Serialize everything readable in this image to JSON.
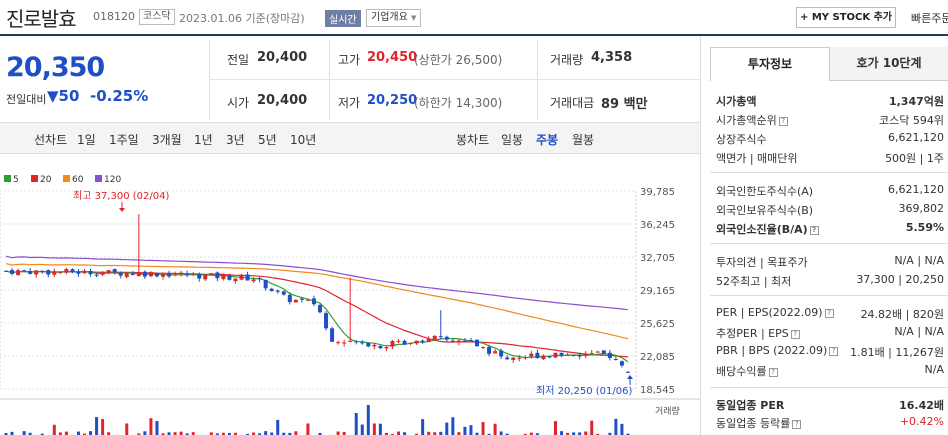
{
  "header": {
    "name": "진로발효",
    "code": "018120",
    "market": "코스닥",
    "date": "2023.01.06 기준(장마감)",
    "live_label": "실시간",
    "company_info_label": "기업개요",
    "mystock_label": "+ MY STOCK 추가",
    "quick_label": "빠른주문"
  },
  "price": {
    "current": "20,350",
    "vs_prev_label": "전일대비",
    "change": "▼50",
    "rate": "-0.25%"
  },
  "stats": {
    "prev_close_label": "전일",
    "prev_close": "20,400",
    "high_label": "고가",
    "high": "20,450",
    "upper_limit": "(상한가 26,500)",
    "volume_label": "거래량",
    "volume": "4,358",
    "open_label": "시가",
    "open": "20,400",
    "low_label": "저가",
    "low": "20,250",
    "lower_limit": "(하한가 14,300)",
    "amount_label": "거래대금",
    "amount": "89 백만"
  },
  "periods": {
    "line_label": "선차트",
    "line_items": [
      "1일",
      "1주일",
      "3개월",
      "1년",
      "3년",
      "5년",
      "10년"
    ],
    "candle_label": "봉차트",
    "candle_items": [
      "일봉",
      "주봉",
      "월봉"
    ],
    "selected": "주봉"
  },
  "right_panel": {
    "tabs": [
      "투자정보",
      "호가 10단계"
    ],
    "rows": [
      {
        "label": "시가총액",
        "value": "1,347억원"
      },
      {
        "label": "시가총액순위",
        "value": "코스닥 594위"
      },
      {
        "label": "상장주식수",
        "value": "6,621,120"
      },
      {
        "label": "액면가 | 매매단위",
        "value": "500원 | 1주"
      },
      {
        "label": "외국인한도주식수(A)",
        "value": "6,621,120"
      },
      {
        "label": "외국인보유주식수(B)",
        "value": "369,802"
      },
      {
        "label": "외국인소진율(B/A)",
        "value": "5.59%"
      },
      {
        "label": "투자의견 | 목표주가",
        "value": "N/A | N/A"
      },
      {
        "label": "52주최고 | 최저",
        "value": "37,300 | 20,250"
      },
      {
        "label": "PER | EPS(2022.09)",
        "value": "24.82배 | 820원"
      },
      {
        "label": "추정PER | EPS",
        "value": "N/A | N/A"
      },
      {
        "label": "PBR | BPS (2022.09)",
        "value": "1.81배 | 11,267원"
      },
      {
        "label": "배당수익률",
        "value": "N/A"
      },
      {
        "label": "동일업종 PER",
        "value": "16.42배"
      },
      {
        "label": "동일업종 등락률",
        "value": "+0.42%"
      }
    ]
  },
  "chart_data": {
    "type": "candlestick",
    "legend": [
      {
        "name": "5",
        "color": "#2ca02c"
      },
      {
        "name": "20",
        "color": "#e0242d"
      },
      {
        "name": "60",
        "color": "#f08a1c"
      },
      {
        "name": "120",
        "color": "#8a4fcf"
      }
    ],
    "y_ticks": [
      "39,785",
      "36,245",
      "32,705",
      "29,165",
      "25,625",
      "22,085",
      "18,545"
    ],
    "ylim": [
      18545,
      39785
    ],
    "high_annotation": "최고 37,300 (02/04)",
    "low_annotation": "최저 20,250 (01/06)",
    "volume_label": "거래량",
    "up_color": "#e0242d",
    "down_color": "#1f4ec7"
  }
}
